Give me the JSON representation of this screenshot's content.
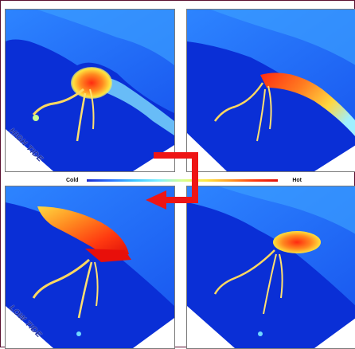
{
  "legend": {
    "cold_label": "Cold",
    "hot_label": "Hot"
  },
  "panels": {
    "high_tide_label": "HIGH TIDE",
    "low_tide_label": "LOW TIDE"
  },
  "colors": {
    "water_deep": "#0a2fd6",
    "water_mid": "#1e72ff",
    "land_edge": "#2aa6ff",
    "plume_hot": "#ff2a10",
    "plume_warm": "#ffb830",
    "arrow": "#ee1515"
  },
  "icons": {
    "cycle_arrow": "cycle-arrow-icon"
  }
}
